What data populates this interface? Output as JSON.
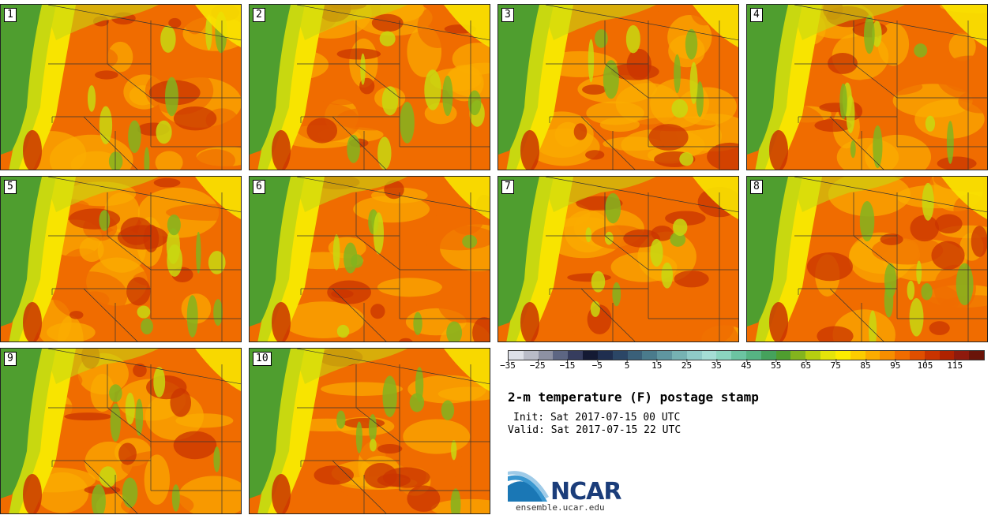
{
  "panels": [
    {
      "label": "1",
      "seed": 3
    },
    {
      "label": "2",
      "seed": 7
    },
    {
      "label": "3",
      "seed": 11
    },
    {
      "label": "4",
      "seed": 13
    },
    {
      "label": "5",
      "seed": 17
    },
    {
      "label": "6",
      "seed": 19
    },
    {
      "label": "7",
      "seed": 23
    },
    {
      "label": "8",
      "seed": 29
    },
    {
      "label": "9",
      "seed": 31
    },
    {
      "label": "10",
      "seed": 37
    }
  ],
  "colorbar": {
    "colors": [
      "#dde0e8",
      "#b9bcc8",
      "#8d91a3",
      "#5d6683",
      "#363d5e",
      "#141a33",
      "#1f2e4f",
      "#2b4666",
      "#3a6079",
      "#4a7b8c",
      "#5f96a0",
      "#76b2b3",
      "#8fcac8",
      "#a5ddd5",
      "#8bd5c0",
      "#6cc4a2",
      "#56b483",
      "#45a25c",
      "#4f9e2f",
      "#83b41e",
      "#b6ce10",
      "#e4e40a",
      "#fdec00",
      "#fccc00",
      "#fbac00",
      "#f68e00",
      "#f06c00",
      "#e04f00",
      "#c93400",
      "#b02200",
      "#8f1a0d",
      "#6a1409"
    ],
    "tick_labels": [
      "−35",
      "−25",
      "−15",
      "−5",
      "5",
      "15",
      "25",
      "35",
      "45",
      "55",
      "65",
      "75",
      "85",
      "95",
      "105",
      "115"
    ]
  },
  "title": "2-m temperature (F) postage stamp",
  "init_text": "Init: Sat 2017-07-15 00 UTC",
  "valid_text": "Valid: Sat 2017-07-15 22 UTC",
  "logo_text": "NCAR",
  "website": "ensemble.ucar.edu",
  "map_colors": {
    "ocean": "#4f9e2f",
    "coast": "#83b41e",
    "cool": "#c8d810",
    "mild": "#f8e400",
    "warm": "#fbac00",
    "hot": "#f06c00",
    "veryhot": "#c93400",
    "boundary": "#333333"
  }
}
